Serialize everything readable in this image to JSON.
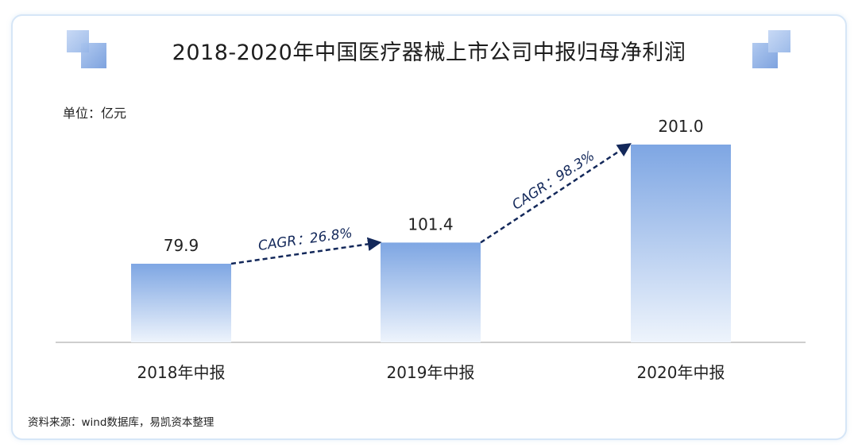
{
  "title": "2018-2020年中国医疗器械上市公司中报归母净利润",
  "unit": "单位：亿元",
  "source": "资料来源：wind数据库，易凯资本整理",
  "colors": {
    "bar_top": "#7ea6e3",
    "bar_bottom": "#eaf2fc",
    "arrow": "#13285a",
    "axis": "#bdbdbd",
    "frame": "#d6e6f7"
  },
  "chart_data": {
    "type": "bar",
    "title": "2018-2020年中国医疗器械上市公司中报归母净利润",
    "categories": [
      "2018年中报",
      "2019年中报",
      "2020年中报"
    ],
    "values": [
      79.9,
      101.4,
      201.0
    ],
    "value_labels": [
      "79.9",
      "101.4",
      "201.0"
    ],
    "ylabel": "单位：亿元",
    "ylim": [
      0,
      201.0
    ],
    "grid": false,
    "annotations": [
      {
        "from": "2018年中报",
        "to": "2019年中报",
        "text": "CAGR：26.8%"
      },
      {
        "from": "2019年中报",
        "to": "2020年中报",
        "text": "CAGR：98.3%"
      }
    ]
  }
}
